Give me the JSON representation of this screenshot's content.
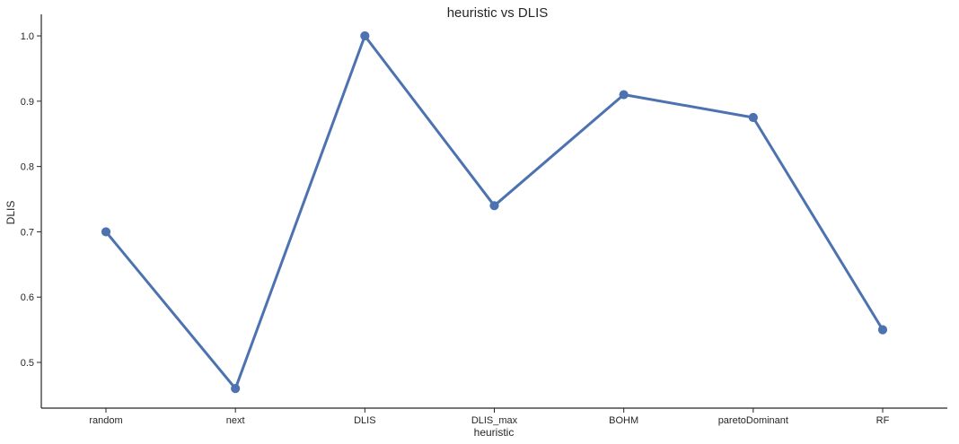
{
  "chart_data": {
    "type": "line",
    "title": "heuristic vs DLIS",
    "xlabel": "heuristic",
    "ylabel": "DLIS",
    "categories": [
      "random",
      "next",
      "DLIS",
      "DLIS_max",
      "BOHM",
      "paretoDominant",
      "RF"
    ],
    "series": [
      {
        "values": [
          0.7,
          0.46,
          1.0,
          0.74,
          0.91,
          0.875,
          0.55
        ]
      }
    ],
    "ylim": [
      0.43,
      1.033
    ],
    "yticks": [
      0.5,
      0.6,
      0.7,
      0.8,
      0.9,
      1.0
    ],
    "ytick_labels": [
      "0.5",
      "0.6",
      "0.7",
      "0.8",
      "0.9",
      "1.0"
    ],
    "grid": false,
    "colors": {
      "line": "#4c72b0",
      "marker": "#4c72b0",
      "axis": "#262626"
    }
  }
}
